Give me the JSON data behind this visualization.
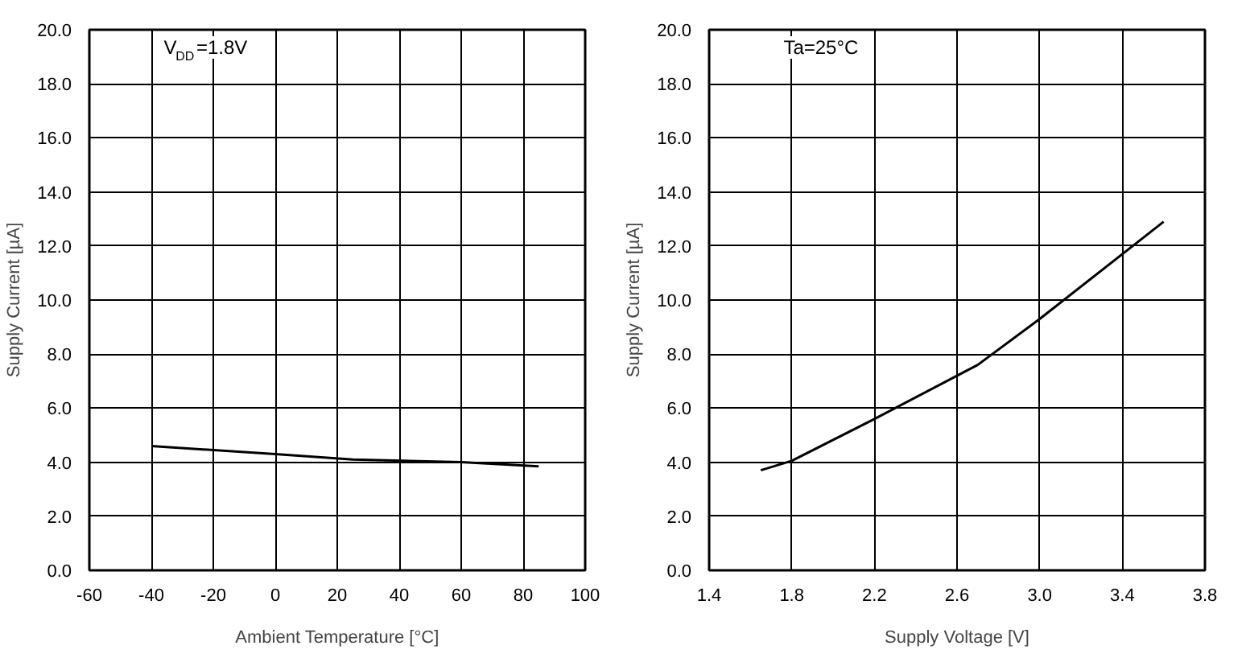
{
  "chart_data": [
    {
      "type": "line",
      "xlabel": "Ambient Temperature [°C]",
      "ylabel": "Supply Current [µA]",
      "annotations": [
        "V$_{DD}$=1.8V"
      ],
      "series": [
        {
          "color": "#000000",
          "x": [
            -40,
            0,
            25,
            60,
            85
          ],
          "values": [
            4.6,
            4.3,
            4.1,
            4.0,
            3.85
          ]
        }
      ],
      "xlim": [
        -60,
        100
      ],
      "xticks": [
        -60,
        -40,
        -20,
        0,
        20,
        40,
        60,
        80,
        100
      ],
      "ylim": [
        0,
        20
      ],
      "yticks": [
        {
          "value": 0,
          "label": "0.0"
        },
        {
          "value": 2,
          "label": "2.0"
        },
        {
          "value": 4,
          "label": "4.0"
        },
        {
          "value": 6,
          "label": "6.0"
        },
        {
          "value": 8,
          "label": "8.0"
        },
        {
          "value": 10,
          "label": "10.0"
        },
        {
          "value": 12,
          "label": "12.0"
        },
        {
          "value": 14,
          "label": "14.0"
        },
        {
          "value": 16,
          "label": "16.0"
        },
        {
          "value": 18,
          "label": "18.0"
        },
        {
          "value": 20,
          "label": "20.0"
        }
      ],
      "grid": true,
      "marker": "none",
      "line_style": "solid"
    },
    {
      "type": "line",
      "xlabel": "Supply Voltage [V]",
      "ylabel": "Supply Current [µA]",
      "annotations": [
        "Ta=25°C"
      ],
      "series": [
        {
          "color": "#000000",
          "x": [
            1.65,
            1.8,
            2.2,
            2.7,
            3.0,
            3.6
          ],
          "values": [
            3.7,
            4.05,
            5.6,
            7.6,
            9.3,
            12.9
          ]
        }
      ],
      "xlim": [
        1.4,
        3.8
      ],
      "xticks": [
        1.4,
        1.8,
        2.2,
        2.6,
        {
          "value": 3,
          "label": "3.0"
        },
        3.4,
        3.8
      ],
      "ylim": [
        0,
        20
      ],
      "yticks": [
        {
          "value": 0,
          "label": "0.0"
        },
        {
          "value": 2,
          "label": "2.0"
        },
        {
          "value": 4,
          "label": "4.0"
        },
        {
          "value": 6,
          "label": "6.0"
        },
        {
          "value": 8,
          "label": "8.0"
        },
        {
          "value": 10,
          "label": "10.0"
        },
        {
          "value": 12,
          "label": "12.0"
        },
        {
          "value": 14,
          "label": "14.0"
        },
        {
          "value": 16,
          "label": "16.0"
        },
        {
          "value": 18,
          "label": "18.0"
        },
        {
          "value": 20,
          "label": "20.0"
        }
      ],
      "grid": true,
      "marker": "none",
      "line_style": "solid"
    }
  ]
}
